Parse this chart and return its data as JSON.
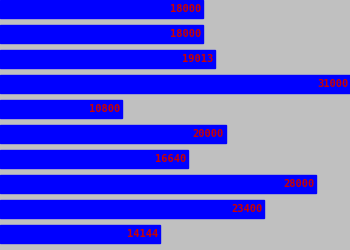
{
  "values": [
    18000,
    18000,
    19013,
    31000,
    10800,
    20000,
    16640,
    28000,
    23400,
    14144
  ],
  "labels": [
    "18000",
    "18000",
    "19013",
    "31000",
    "10800",
    "20000",
    "16640",
    "28000",
    "23400",
    "14144"
  ],
  "max_value": 31000,
  "bar_color": "#0000ff",
  "text_color": "#cc0000",
  "background_color": "#c0c0c0",
  "text_fontsize": 7.5,
  "fig_width": 3.5,
  "fig_height": 2.5,
  "dpi": 100
}
